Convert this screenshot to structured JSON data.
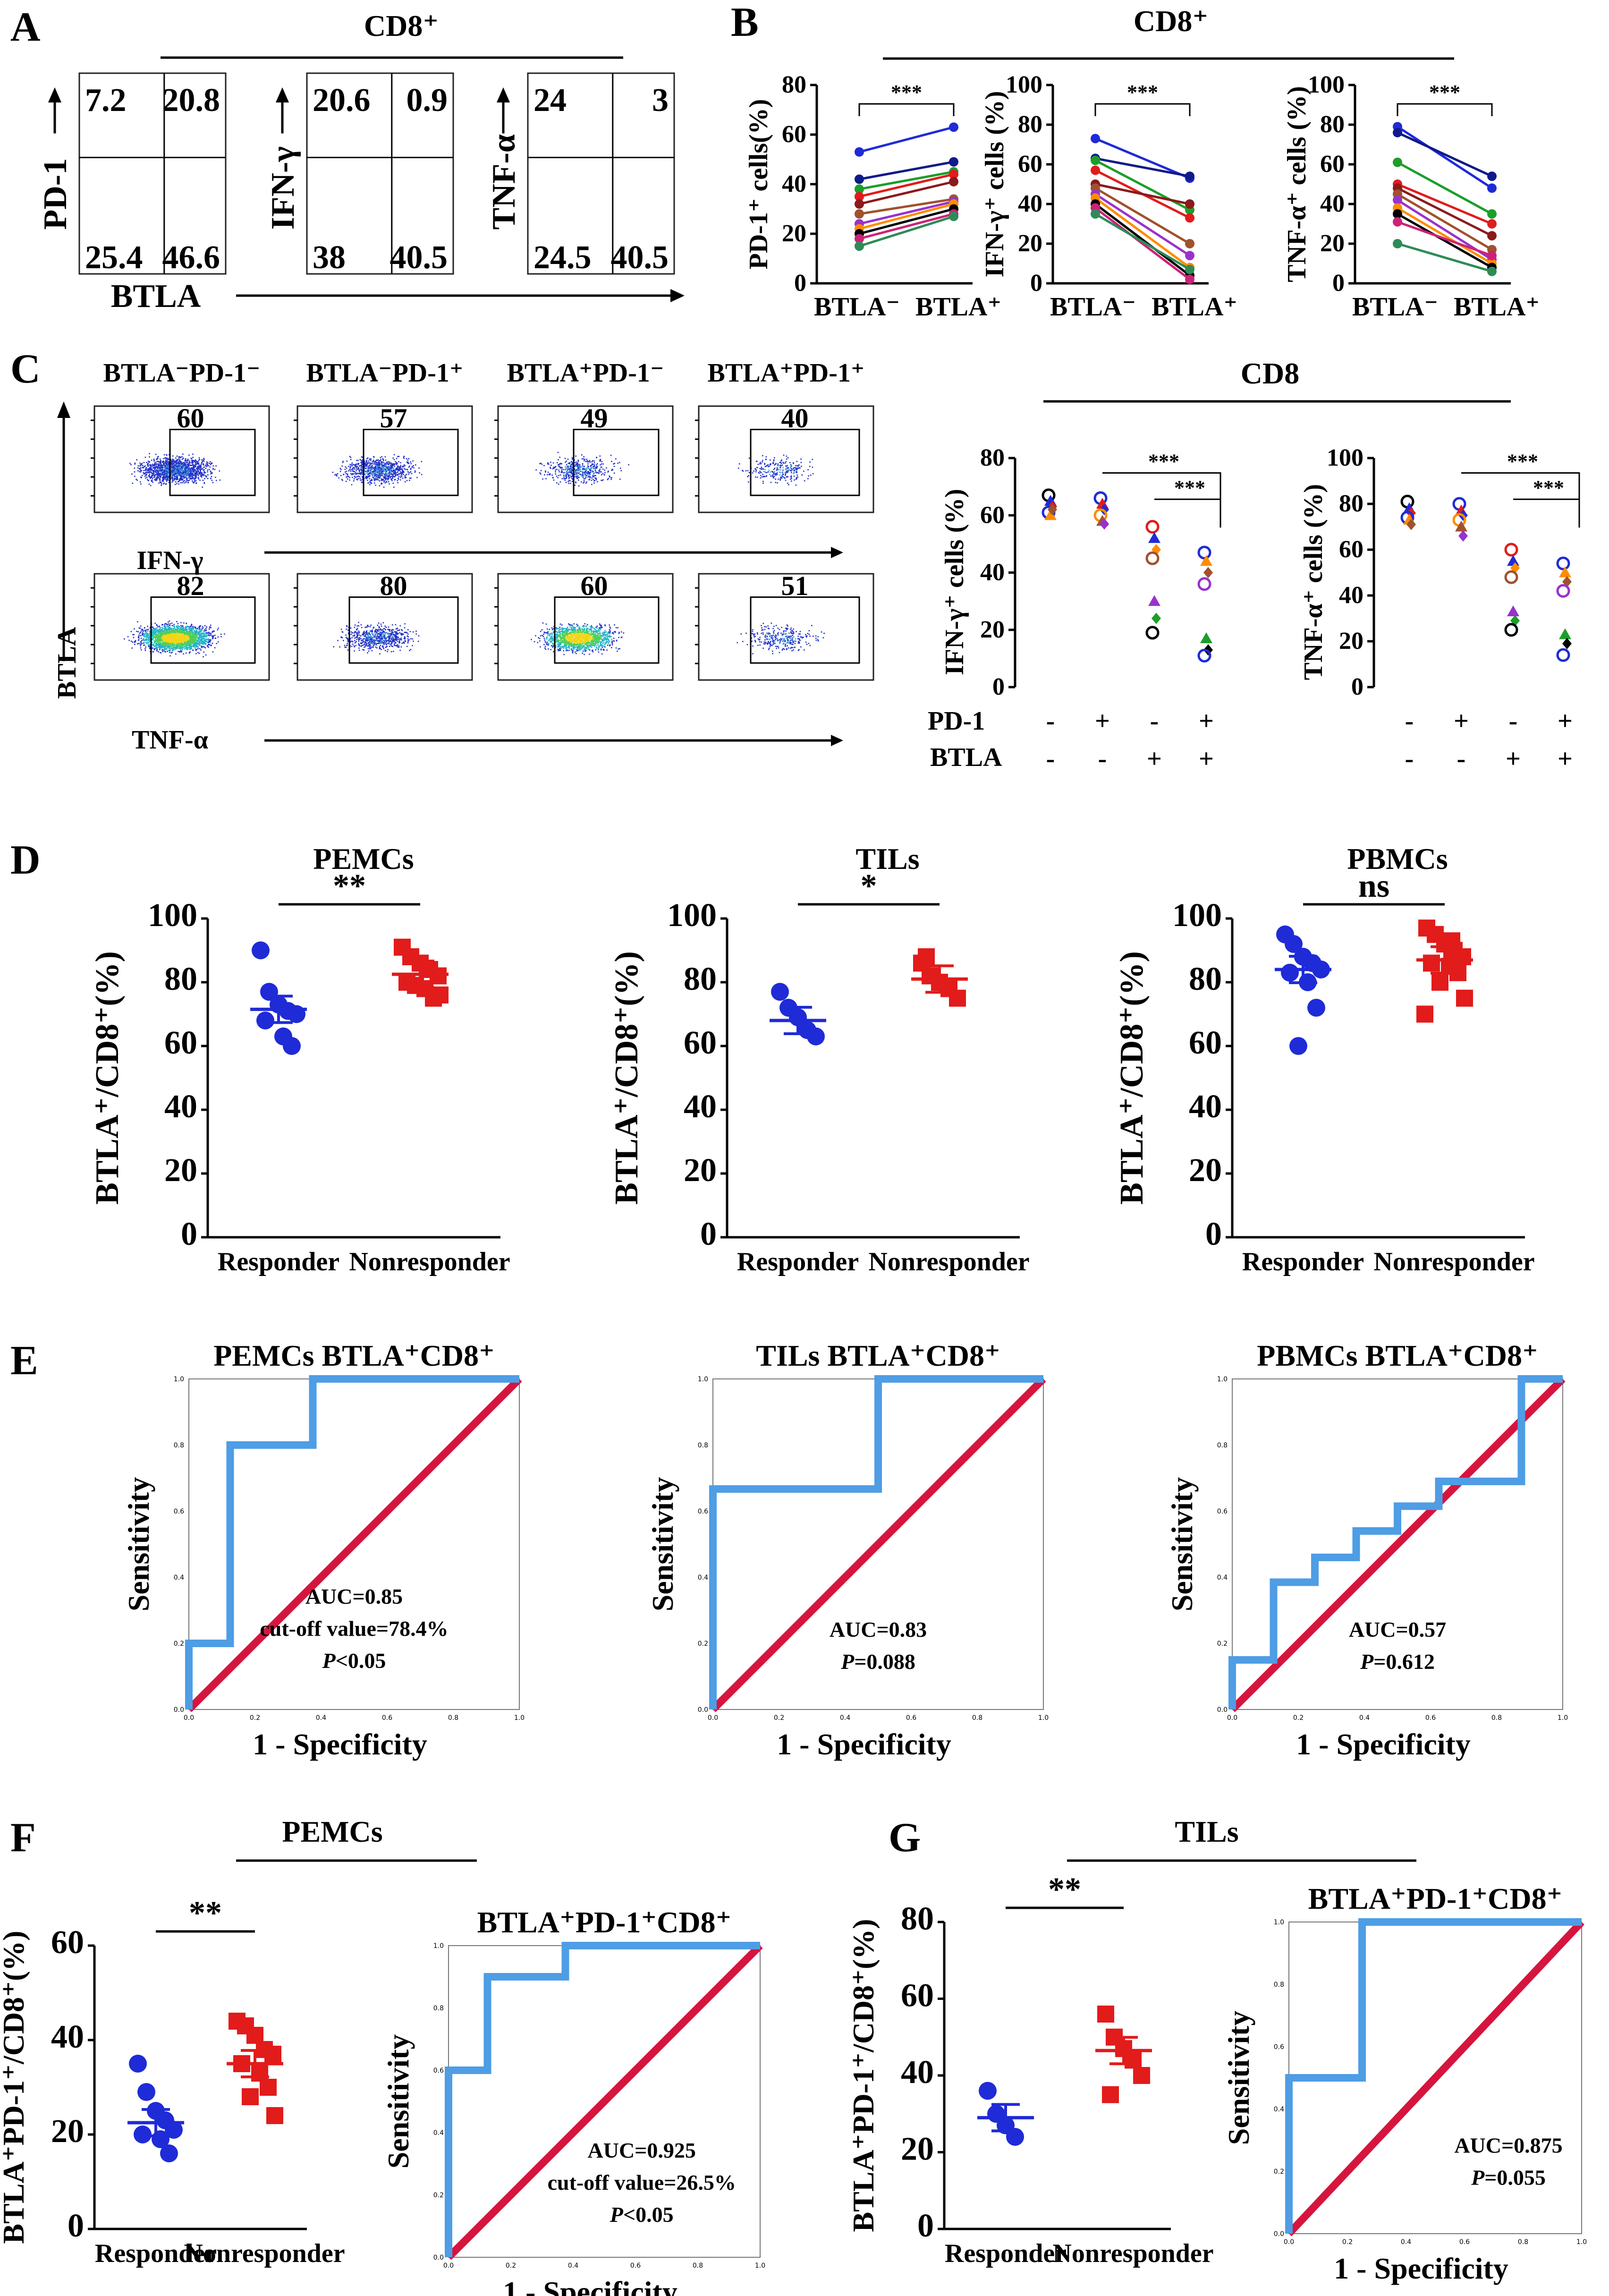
{
  "panel_labels": {
    "A": "A",
    "B": "B",
    "C": "C",
    "D": "D",
    "E": "E",
    "F": "F",
    "G": "G"
  },
  "A": {
    "header": "CD8⁺",
    "x_label": "BTLA",
    "plots": [
      {
        "y_label": "PD-1",
        "q": [
          "7.2",
          "20.8",
          "25.4",
          "46.6"
        ]
      },
      {
        "y_label": "IFN-γ",
        "q": [
          "20.6",
          "0.9",
          "38",
          "40.5"
        ]
      },
      {
        "y_label": "TNF-α",
        "q": [
          "24",
          "3",
          "24.5",
          "40.5"
        ]
      }
    ]
  },
  "B": {
    "header": "CD8⁺",
    "sig": "***",
    "x_cats": [
      "BTLA⁻",
      "BTLA⁺"
    ],
    "chart_data": [
      {
        "type": "line",
        "ylabel": "PD-1⁺ cells(%)",
        "ylim": [
          0,
          80
        ],
        "yticks": [
          0,
          20,
          40,
          60,
          80
        ],
        "categories": [
          "BTLA-",
          "BTLA+"
        ],
        "series": [
          {
            "name": "s1",
            "values": [
              53,
              63
            ]
          },
          {
            "name": "s2",
            "values": [
              42,
              49
            ]
          },
          {
            "name": "s3",
            "values": [
              38,
              45
            ]
          },
          {
            "name": "s4",
            "values": [
              35,
              44
            ]
          },
          {
            "name": "s5",
            "values": [
              32,
              41
            ]
          },
          {
            "name": "s6",
            "values": [
              28,
              34
            ]
          },
          {
            "name": "s7",
            "values": [
              24,
              33
            ]
          },
          {
            "name": "s8",
            "values": [
              22,
              32
            ]
          },
          {
            "name": "s9",
            "values": [
              20,
              30
            ]
          },
          {
            "name": "s10",
            "values": [
              18,
              28
            ]
          },
          {
            "name": "s11",
            "values": [
              15,
              27
            ]
          }
        ]
      },
      {
        "type": "line",
        "ylabel": "IFN-γ⁺ cells (%)",
        "ylim": [
          0,
          100
        ],
        "yticks": [
          0,
          20,
          40,
          60,
          80,
          100
        ],
        "categories": [
          "BTLA-",
          "BTLA+"
        ],
        "series": [
          {
            "name": "s1",
            "values": [
              73,
              53
            ]
          },
          {
            "name": "s2",
            "values": [
              63,
              54
            ]
          },
          {
            "name": "s3",
            "values": [
              62,
              37
            ]
          },
          {
            "name": "s4",
            "values": [
              57,
              33
            ]
          },
          {
            "name": "s5",
            "values": [
              50,
              40
            ]
          },
          {
            "name": "s6",
            "values": [
              48,
              20
            ]
          },
          {
            "name": "s7",
            "values": [
              45,
              14
            ]
          },
          {
            "name": "s8",
            "values": [
              43,
              8
            ]
          },
          {
            "name": "s9",
            "values": [
              40,
              4
            ]
          },
          {
            "name": "s10",
            "values": [
              38,
              2
            ]
          },
          {
            "name": "s11",
            "values": [
              35,
              7
            ]
          }
        ]
      },
      {
        "type": "line",
        "ylabel": "TNF-α⁺ cells (%)",
        "ylim": [
          0,
          100
        ],
        "yticks": [
          0,
          20,
          40,
          60,
          80,
          100
        ],
        "categories": [
          "BTLA-",
          "BTLA+"
        ],
        "series": [
          {
            "name": "s1",
            "values": [
              79,
              48
            ]
          },
          {
            "name": "s2",
            "values": [
              76,
              54
            ]
          },
          {
            "name": "s3",
            "values": [
              61,
              35
            ]
          },
          {
            "name": "s4",
            "values": [
              50,
              30
            ]
          },
          {
            "name": "s5",
            "values": [
              48,
              24
            ]
          },
          {
            "name": "s6",
            "values": [
              45,
              17
            ]
          },
          {
            "name": "s7",
            "values": [
              42,
              12
            ]
          },
          {
            "name": "s8",
            "values": [
              38,
              10
            ]
          },
          {
            "name": "s9",
            "values": [
              35,
              8
            ]
          },
          {
            "name": "s10",
            "values": [
              31,
              14
            ]
          },
          {
            "name": "s11",
            "values": [
              20,
              6
            ]
          }
        ]
      }
    ]
  },
  "C": {
    "col_labels": [
      "BTLA⁻PD-1⁻",
      "BTLA⁻PD-1⁺",
      "BTLA⁺PD-1⁻",
      "BTLA⁺PD-1⁺"
    ],
    "ifn_vals": [
      "60",
      "57",
      "49",
      "40"
    ],
    "tnf_vals": [
      "82",
      "80",
      "60",
      "51"
    ],
    "row1_x": "IFN-γ",
    "row2_x": "TNF-α",
    "y_label": "BTLA",
    "cd8": "CD8",
    "pd1_label": "PD-1",
    "btla_label": "BTLA",
    "pd1_signs": [
      "-",
      "+",
      "-",
      "+"
    ],
    "btla_signs": [
      "-",
      "-",
      "+",
      "+"
    ],
    "sig": "***",
    "chart_data": [
      {
        "type": "scatter",
        "ylabel": "IFN-γ⁺ cells (%)",
        "ylim": [
          0,
          80
        ],
        "yticks": [
          0,
          20,
          40,
          60,
          80
        ],
        "groups": [
          [
            67,
            65,
            63,
            61,
            60,
            62
          ],
          [
            66,
            64,
            62,
            60,
            58,
            57
          ],
          [
            56,
            52,
            48,
            45,
            30,
            24,
            19
          ],
          [
            47,
            44,
            40,
            36,
            17,
            13,
            11
          ]
        ]
      },
      {
        "type": "scatter",
        "ylabel": "TNF-α⁺ cells (%)",
        "ylim": [
          0,
          100
        ],
        "yticks": [
          0,
          20,
          40,
          60,
          80,
          100
        ],
        "groups": [
          [
            81,
            78,
            76,
            74,
            73,
            71
          ],
          [
            80,
            77,
            75,
            73,
            70,
            66
          ],
          [
            60,
            55,
            52,
            48,
            33,
            29,
            25
          ],
          [
            54,
            50,
            46,
            42,
            23,
            19,
            14
          ]
        ]
      }
    ]
  },
  "D": {
    "categories": [
      "Responder",
      "Nonresponder"
    ],
    "ylabel": "BTLA⁺/CD8⁺(%)",
    "chart_data": [
      {
        "type": "scatter",
        "title": "PEMCs",
        "sig": "**",
        "ylim": [
          0,
          100
        ],
        "yticks": [
          0,
          20,
          40,
          60,
          80,
          100
        ],
        "responder": [
          90,
          77,
          73,
          71,
          70,
          68,
          63,
          60
        ],
        "nonresponder": [
          91,
          88,
          86,
          84,
          82,
          80,
          78,
          75,
          79,
          76
        ],
        "mean": [
          71.5,
          82.5
        ]
      },
      {
        "type": "scatter",
        "title": "TILs",
        "sig": "*",
        "ylim": [
          0,
          100
        ],
        "yticks": [
          0,
          20,
          40,
          60,
          80,
          100
        ],
        "responder": [
          77,
          72,
          69,
          65,
          63
        ],
        "nonresponder": [
          86,
          82,
          80,
          78,
          75,
          88
        ],
        "mean": [
          68,
          81
        ]
      },
      {
        "type": "scatter",
        "title": "PBMCs",
        "sig": "ns",
        "ylim": [
          0,
          100
        ],
        "yticks": [
          0,
          20,
          40,
          60,
          80,
          100
        ],
        "responder": [
          95,
          92,
          88,
          86,
          84,
          83,
          80,
          72,
          60
        ],
        "nonresponder": [
          97,
          95,
          92,
          90,
          88,
          86,
          85,
          83,
          80,
          75,
          70,
          93
        ],
        "mean": [
          84,
          87
        ]
      }
    ]
  },
  "E": {
    "x_label": "1 - Specificity",
    "y_label": "Sensitivity",
    "roc_ticks": [
      "0.0",
      "0.2",
      "0.4",
      "0.6",
      "0.8",
      "1.0"
    ],
    "chart_data": [
      {
        "type": "line",
        "title": "PEMCs BTLA⁺CD8⁺",
        "auc": "AUC=0.85",
        "cutoff": "cut-off value=78.4%",
        "p": "<0.05",
        "fpr": [
          0,
          0,
          0.125,
          0.125,
          0.375,
          0.375,
          1
        ],
        "tpr": [
          0,
          0.2,
          0.2,
          0.8,
          0.8,
          1,
          1
        ]
      },
      {
        "type": "line",
        "title": "TILs BTLA⁺CD8⁺",
        "auc": "AUC=0.83",
        "cutoff": "",
        "p": "=0.088",
        "fpr": [
          0,
          0,
          0.5,
          0.5,
          1
        ],
        "tpr": [
          0,
          0.667,
          0.667,
          1,
          1
        ]
      },
      {
        "type": "line",
        "title": "PBMCs BTLA⁺CD8⁺",
        "auc": "AUC=0.57",
        "cutoff": "",
        "p": "=0.612",
        "fpr": [
          0,
          0,
          0.125,
          0.125,
          0.25,
          0.25,
          0.375,
          0.375,
          0.5,
          0.5,
          0.625,
          0.625,
          0.875,
          0.875,
          1
        ],
        "tpr": [
          0,
          0.15,
          0.15,
          0.385,
          0.385,
          0.46,
          0.46,
          0.54,
          0.54,
          0.615,
          0.615,
          0.69,
          0.69,
          1,
          1
        ]
      }
    ]
  },
  "F": {
    "title": "PEMCs",
    "ylabel": "BTLA⁺PD-1⁺/CD8⁺(%)",
    "categories": [
      "Responder",
      "Nonresponder"
    ],
    "chart_data": {
      "type": "scatter",
      "sig": "**",
      "ylim": [
        0,
        60
      ],
      "yticks": [
        0,
        20,
        40,
        60
      ],
      "responder": [
        35,
        29,
        25,
        23,
        21,
        20,
        19,
        16
      ],
      "nonresponder": [
        44,
        43,
        41,
        38,
        37,
        35,
        33,
        30,
        28,
        24
      ],
      "mean": [
        22.5,
        35
      ]
    },
    "roc": {
      "type": "line",
      "title": "BTLA⁺PD-1⁺CD8⁺",
      "auc": "AUC=0.925",
      "cutoff": "cut-off value=26.5%",
      "p": "<0.05",
      "fpr": [
        0,
        0,
        0.125,
        0.125,
        0.375,
        0.375,
        1
      ],
      "tpr": [
        0,
        0.6,
        0.6,
        0.9,
        0.9,
        1,
        1
      ]
    }
  },
  "G": {
    "title": "TILs",
    "ylabel": "BTLA⁺PD-1⁺/CD8⁺(%)",
    "categories": [
      "Responder",
      "Nonresponder"
    ],
    "chart_data": {
      "type": "scatter",
      "sig": "**",
      "ylim": [
        0,
        80
      ],
      "yticks": [
        0,
        20,
        40,
        60,
        80
      ],
      "responder": [
        36,
        30,
        27,
        24
      ],
      "nonresponder": [
        56,
        50,
        47,
        44,
        40,
        35
      ],
      "mean": [
        29,
        46.5
      ]
    },
    "roc": {
      "type": "line",
      "title": "BTLA⁺PD-1⁺CD8⁺",
      "auc": "AUC=0.875",
      "cutoff": "",
      "p": "=0.055",
      "fpr": [
        0,
        0,
        0.25,
        0.25,
        1
      ],
      "tpr": [
        0,
        0.5,
        0.5,
        1,
        1
      ]
    }
  },
  "p_italic": "P",
  "colors": {
    "blue": "#1f2bd6",
    "red": "#e21b1b",
    "roc": "#4e9de5",
    "diag": "#d6153f",
    "line_palette": [
      "#1f2bd6",
      "#101a8a",
      "#1c9e2a",
      "#e21b1b",
      "#8b1a1a",
      "#a0522d",
      "#9932cc",
      "#ff8c00",
      "#000000",
      "#cc2277",
      "#2e8b57"
    ]
  }
}
